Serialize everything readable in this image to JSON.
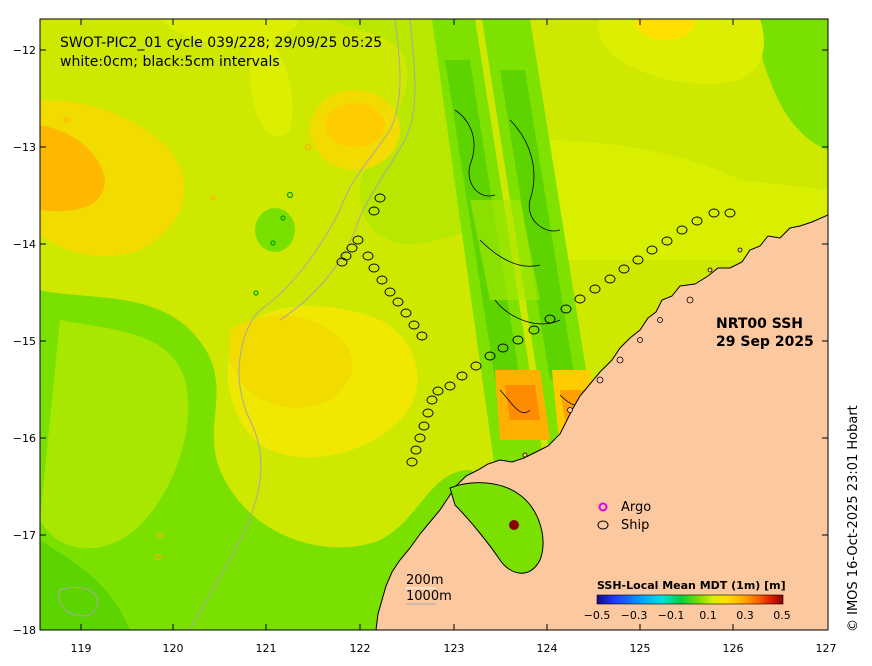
{
  "header": {
    "title": "SWOT-PIC2_01 cycle 039/228; 29/09/25 05:25",
    "subtitle": "white:0cm; black:5cm intervals"
  },
  "product": {
    "line1": "NRT00 SSH",
    "line2": "29 Sep 2025"
  },
  "legend": {
    "argo_label": "Argo",
    "ship_label": "Ship",
    "argo_color": "#e000e0",
    "ship_color": "#000000"
  },
  "depth_contours": {
    "shallow": "200m",
    "deep": "1000m"
  },
  "colorbar": {
    "title": "SSH-Local Mean MDT (1m) [m]",
    "ticks": [
      "−0.5",
      "−0.3",
      "−0.1",
      "0.1",
      "0.3",
      "0.5"
    ],
    "colors": [
      "#1a0a8c",
      "#1e3cff",
      "#00a8ff",
      "#00e0e0",
      "#00d040",
      "#7ae000",
      "#d8f000",
      "#ffe000",
      "#ffb000",
      "#ff6a00",
      "#e02000",
      "#8a0000"
    ]
  },
  "axes": {
    "x_ticks": [
      "119",
      "120",
      "121",
      "122",
      "123",
      "124",
      "125",
      "126",
      "127"
    ],
    "y_ticks": [
      "−12",
      "−13",
      "−14",
      "−15",
      "−16",
      "−17",
      "−18"
    ],
    "lon_range": [
      118.6,
      127
    ],
    "lat_range": [
      -18,
      -11.7
    ]
  },
  "credit": "© IMOS 16-Oct-2025 23:01 Hobart",
  "colors": {
    "land": "#fcc8a0",
    "sea_base": "#cfe800",
    "sea_low": "#7ae000",
    "sea_high": "#ffcc00"
  }
}
